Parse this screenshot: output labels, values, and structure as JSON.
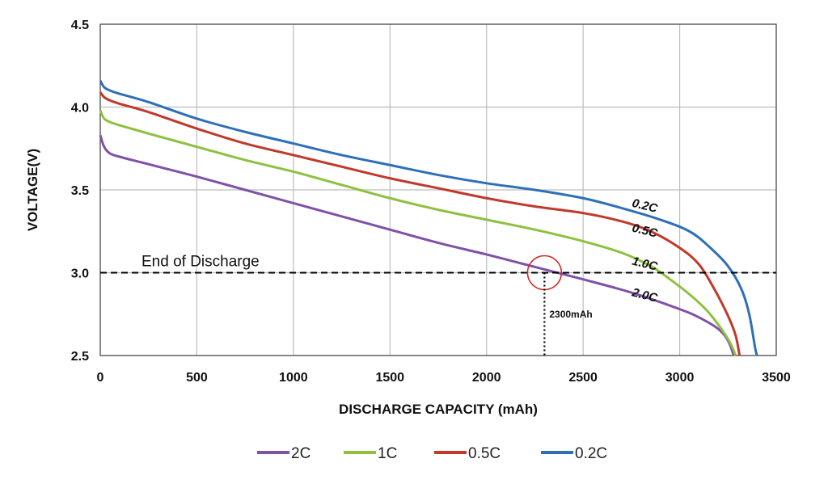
{
  "chart_data": {
    "type": "line",
    "xlabel": "DISCHARGE CAPACITY (mAh)",
    "ylabel": "VOLTAGE(V)",
    "xlim": [
      0,
      3500
    ],
    "ylim": [
      2.5,
      4.5
    ],
    "x_ticks": [
      "0",
      "500",
      "1000",
      "1500",
      "2000",
      "2500",
      "3000",
      "3500"
    ],
    "y_ticks": [
      "2.5",
      "3.0",
      "3.5",
      "4.0",
      "4.5"
    ],
    "grid": true,
    "legend_position": "bottom",
    "series": [
      {
        "name": "2C",
        "curve_label": "2.0C",
        "color": "#7f51a8",
        "points": [
          [
            0,
            3.83
          ],
          [
            20,
            3.76
          ],
          [
            50,
            3.72
          ],
          [
            100,
            3.7
          ],
          [
            200,
            3.67
          ],
          [
            300,
            3.64
          ],
          [
            500,
            3.58
          ],
          [
            750,
            3.5
          ],
          [
            1000,
            3.42
          ],
          [
            1250,
            3.34
          ],
          [
            1500,
            3.26
          ],
          [
            1750,
            3.18
          ],
          [
            2000,
            3.11
          ],
          [
            2200,
            3.05
          ],
          [
            2300,
            3.02
          ],
          [
            2500,
            2.96
          ],
          [
            2750,
            2.88
          ],
          [
            3000,
            2.78
          ],
          [
            3100,
            2.73
          ],
          [
            3200,
            2.66
          ],
          [
            3250,
            2.59
          ],
          [
            3280,
            2.5
          ]
        ]
      },
      {
        "name": "1C",
        "curve_label": "1.0C",
        "color": "#8dc13f",
        "points": [
          [
            0,
            3.98
          ],
          [
            20,
            3.93
          ],
          [
            50,
            3.91
          ],
          [
            100,
            3.89
          ],
          [
            250,
            3.84
          ],
          [
            500,
            3.76
          ],
          [
            750,
            3.68
          ],
          [
            1000,
            3.61
          ],
          [
            1250,
            3.53
          ],
          [
            1500,
            3.45
          ],
          [
            1750,
            3.38
          ],
          [
            2000,
            3.32
          ],
          [
            2250,
            3.26
          ],
          [
            2500,
            3.19
          ],
          [
            2700,
            3.12
          ],
          [
            2850,
            3.04
          ],
          [
            2950,
            2.96
          ],
          [
            3050,
            2.87
          ],
          [
            3150,
            2.76
          ],
          [
            3250,
            2.6
          ],
          [
            3290,
            2.5
          ]
        ]
      },
      {
        "name": "0.5C",
        "curve_label": "0.5C",
        "color": "#c0392b",
        "points": [
          [
            0,
            4.09
          ],
          [
            20,
            4.06
          ],
          [
            50,
            4.04
          ],
          [
            100,
            4.02
          ],
          [
            250,
            3.97
          ],
          [
            500,
            3.87
          ],
          [
            750,
            3.78
          ],
          [
            1000,
            3.71
          ],
          [
            1250,
            3.64
          ],
          [
            1500,
            3.57
          ],
          [
            1750,
            3.51
          ],
          [
            2000,
            3.45
          ],
          [
            2250,
            3.4
          ],
          [
            2500,
            3.36
          ],
          [
            2700,
            3.31
          ],
          [
            2850,
            3.25
          ],
          [
            3000,
            3.15
          ],
          [
            3100,
            3.05
          ],
          [
            3180,
            2.9
          ],
          [
            3250,
            2.74
          ],
          [
            3290,
            2.62
          ],
          [
            3310,
            2.5
          ]
        ]
      },
      {
        "name": "0.2C",
        "curve_label": "0.2C",
        "color": "#2e6fba",
        "points": [
          [
            0,
            4.16
          ],
          [
            20,
            4.12
          ],
          [
            50,
            4.1
          ],
          [
            100,
            4.08
          ],
          [
            250,
            4.03
          ],
          [
            500,
            3.93
          ],
          [
            750,
            3.85
          ],
          [
            1000,
            3.78
          ],
          [
            1250,
            3.71
          ],
          [
            1500,
            3.65
          ],
          [
            1750,
            3.59
          ],
          [
            2000,
            3.54
          ],
          [
            2250,
            3.5
          ],
          [
            2500,
            3.45
          ],
          [
            2700,
            3.39
          ],
          [
            2900,
            3.32
          ],
          [
            3050,
            3.25
          ],
          [
            3150,
            3.16
          ],
          [
            3250,
            3.04
          ],
          [
            3320,
            2.9
          ],
          [
            3360,
            2.75
          ],
          [
            3390,
            2.55
          ],
          [
            3400,
            2.5
          ]
        ]
      }
    ],
    "annotations": {
      "end_of_discharge_label": "End of Discharge",
      "end_of_discharge_voltage": 3.0,
      "marker_x": 2300,
      "marker_y": 3.0,
      "marker_label": "2300mAh"
    }
  }
}
